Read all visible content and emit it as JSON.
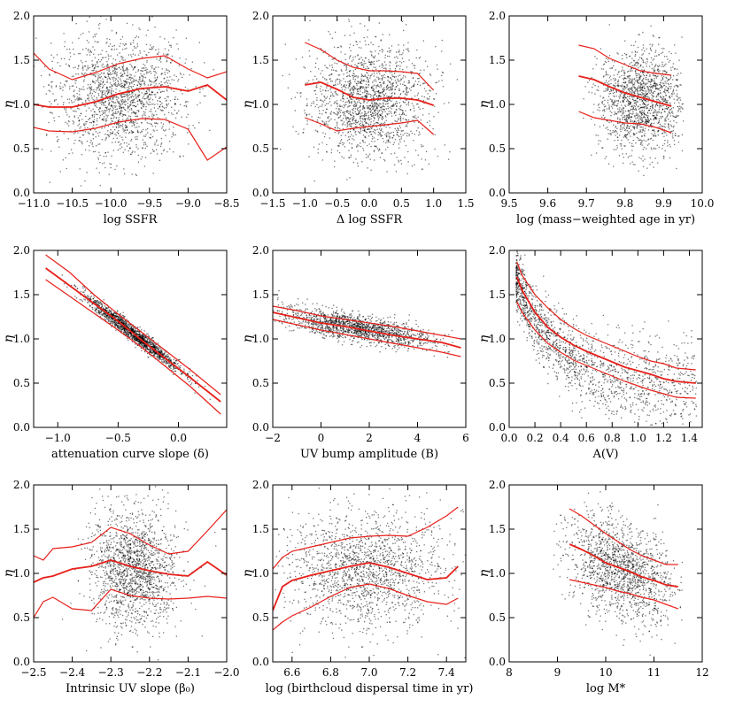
{
  "figure": {
    "shared_ylabel": "η"
  },
  "chart_data": [
    {
      "type": "scatter",
      "xlabel": "log SSFR",
      "ylabel": "η",
      "xlim": [
        -11.0,
        -8.5
      ],
      "ylim": [
        0.0,
        2.0
      ],
      "xticks": [
        -11.0,
        -10.5,
        -10.0,
        -9.5,
        -9.0,
        -8.5
      ],
      "xtick_labels": [
        "−11.0",
        "−10.5",
        "−10.0",
        "−9.5",
        "−9.0",
        "−8.5"
      ],
      "yticks": [
        0.0,
        0.5,
        1.0,
        1.5,
        2.0
      ],
      "ytick_labels": [
        "0.0",
        "0.5",
        "1.0",
        "1.5",
        "2.0"
      ],
      "cloud": {
        "cx": -9.9,
        "sx": 0.42,
        "cy": 1.08,
        "sy": 0.33,
        "n": 1700
      },
      "lines": [
        {
          "x": [
            -11.0,
            -10.8,
            -10.5,
            -10.2,
            -9.9,
            -9.6,
            -9.3,
            -9.0,
            -8.75,
            -8.5
          ],
          "y": [
            1.58,
            1.4,
            1.28,
            1.36,
            1.46,
            1.52,
            1.55,
            1.4,
            1.3,
            1.37
          ]
        },
        {
          "x": [
            -11.0,
            -10.8,
            -10.5,
            -10.2,
            -9.9,
            -9.6,
            -9.3,
            -9.0,
            -8.75,
            -8.5
          ],
          "y": [
            1.0,
            0.97,
            0.97,
            1.03,
            1.12,
            1.18,
            1.2,
            1.15,
            1.22,
            1.05
          ]
        },
        {
          "x": [
            -11.0,
            -10.8,
            -10.5,
            -10.2,
            -9.9,
            -9.6,
            -9.3,
            -9.0,
            -8.75,
            -8.5
          ],
          "y": [
            0.74,
            0.7,
            0.69,
            0.73,
            0.8,
            0.84,
            0.83,
            0.72,
            0.37,
            0.52
          ]
        }
      ]
    },
    {
      "type": "scatter",
      "xlabel": "Δ log SSFR",
      "ylabel": "η",
      "xlim": [
        -1.5,
        1.5
      ],
      "ylim": [
        0.0,
        2.0
      ],
      "xticks": [
        -1.5,
        -1.0,
        -0.5,
        0.0,
        0.5,
        1.0,
        1.5
      ],
      "xtick_labels": [
        "−1.5",
        "−1.0",
        "−0.5",
        "0.0",
        "0.5",
        "1.0",
        "1.5"
      ],
      "yticks": [
        0.0,
        0.5,
        1.0,
        1.5,
        2.0
      ],
      "ytick_labels": [
        "0.0",
        "0.5",
        "1.0",
        "1.5",
        "2.0"
      ],
      "cloud": {
        "cx": 0.0,
        "sx": 0.45,
        "cy": 1.05,
        "sy": 0.32,
        "n": 1700
      },
      "lines": [
        {
          "x": [
            -1.0,
            -0.75,
            -0.5,
            -0.25,
            0.0,
            0.25,
            0.5,
            0.75,
            1.0
          ],
          "y": [
            1.7,
            1.62,
            1.5,
            1.42,
            1.38,
            1.38,
            1.37,
            1.35,
            1.16
          ]
        },
        {
          "x": [
            -1.0,
            -0.75,
            -0.5,
            -0.25,
            0.0,
            0.25,
            0.5,
            0.75,
            1.0
          ],
          "y": [
            1.22,
            1.25,
            1.17,
            1.08,
            1.05,
            1.07,
            1.07,
            1.05,
            0.99
          ]
        },
        {
          "x": [
            -1.0,
            -0.75,
            -0.5,
            -0.25,
            0.0,
            0.25,
            0.5,
            0.75,
            1.0
          ],
          "y": [
            0.85,
            0.78,
            0.7,
            0.73,
            0.75,
            0.77,
            0.79,
            0.82,
            0.66
          ]
        }
      ]
    },
    {
      "type": "scatter",
      "xlabel": "log (mass−weighted age in yr)",
      "ylabel": "η",
      "xlim": [
        9.5,
        10.0
      ],
      "ylim": [
        0.0,
        2.0
      ],
      "xticks": [
        9.5,
        9.6,
        9.7,
        9.8,
        9.9,
        10.0
      ],
      "xtick_labels": [
        "9.5",
        "9.6",
        "9.7",
        "9.8",
        "9.9",
        "10.0"
      ],
      "yticks": [
        0.0,
        0.5,
        1.0,
        1.5,
        2.0
      ],
      "ytick_labels": [
        "0.0",
        "0.5",
        "1.0",
        "1.5",
        "2.0"
      ],
      "cloud": {
        "cx": 9.84,
        "sx": 0.055,
        "cy": 1.05,
        "sy": 0.3,
        "n": 1500,
        "xmin": 9.62,
        "xmax": 9.95
      },
      "lines": [
        {
          "x": [
            9.68,
            9.72,
            9.76,
            9.8,
            9.84,
            9.88,
            9.92
          ],
          "y": [
            1.67,
            1.63,
            1.52,
            1.45,
            1.38,
            1.35,
            1.33
          ]
        },
        {
          "x": [
            9.68,
            9.72,
            9.76,
            9.8,
            9.84,
            9.88,
            9.92
          ],
          "y": [
            1.32,
            1.28,
            1.2,
            1.13,
            1.08,
            1.03,
            0.98
          ]
        },
        {
          "x": [
            9.68,
            9.72,
            9.76,
            9.8,
            9.84,
            9.88,
            9.92
          ],
          "y": [
            0.92,
            0.85,
            0.82,
            0.79,
            0.78,
            0.74,
            0.68
          ]
        }
      ]
    },
    {
      "type": "scatter",
      "xlabel": "attenuation curve slope (δ)",
      "ylabel": "η",
      "xlim": [
        -1.2,
        0.4
      ],
      "ylim": [
        0.0,
        2.0
      ],
      "xticks": [
        -1.0,
        -0.5,
        0.0
      ],
      "xtick_labels": [
        "−1.0",
        "−0.5",
        "0.0"
      ],
      "yticks": [
        0.0,
        0.5,
        1.0,
        1.5,
        2.0
      ],
      "ytick_labels": [
        "0.0",
        "0.5",
        "1.0",
        "1.5",
        "2.0"
      ],
      "cloud": {
        "mode": "linear",
        "cx": -0.38,
        "sx": 0.2,
        "slope": -1.05,
        "icept": 0.67,
        "sy": 0.045,
        "n": 1600
      },
      "lines": [
        {
          "x": [
            -1.1,
            -0.9,
            -0.7,
            -0.5,
            -0.3,
            -0.1,
            0.1,
            0.35
          ],
          "y": [
            1.95,
            1.75,
            1.5,
            1.28,
            1.07,
            0.86,
            0.65,
            0.37
          ]
        },
        {
          "x": [
            -1.1,
            -0.9,
            -0.7,
            -0.5,
            -0.3,
            -0.1,
            0.1,
            0.35
          ],
          "y": [
            1.8,
            1.6,
            1.4,
            1.2,
            0.98,
            0.77,
            0.56,
            0.29
          ]
        },
        {
          "x": [
            -1.1,
            -0.9,
            -0.7,
            -0.5,
            -0.3,
            -0.1,
            0.1,
            0.35
          ],
          "y": [
            1.67,
            1.48,
            1.29,
            1.1,
            0.9,
            0.68,
            0.46,
            0.15
          ]
        }
      ]
    },
    {
      "type": "scatter",
      "xlabel": "UV bump amplitude (B)",
      "ylabel": "η",
      "xlim": [
        -2.0,
        6.0
      ],
      "ylim": [
        0.0,
        2.0
      ],
      "xticks": [
        -2,
        0,
        2,
        4,
        6
      ],
      "xtick_labels": [
        "−2",
        "0",
        "2",
        "4",
        "6"
      ],
      "yticks": [
        0.0,
        0.5,
        1.0,
        1.5,
        2.0
      ],
      "ytick_labels": [
        "0.0",
        "0.5",
        "1.0",
        "1.5",
        "2.0"
      ],
      "cloud": {
        "mode": "linear",
        "cx": 1.4,
        "sx": 1.6,
        "slope": -0.047,
        "icept": 1.2,
        "sy": 0.075,
        "n": 1500,
        "xmin": -2.0,
        "xmax": 5.8
      },
      "lines": [
        {
          "x": [
            -2.0,
            -1.0,
            0.0,
            1.0,
            2.0,
            3.0,
            4.0,
            5.0,
            5.8
          ],
          "y": [
            1.37,
            1.32,
            1.26,
            1.22,
            1.18,
            1.14,
            1.09,
            1.04,
            1.0
          ]
        },
        {
          "x": [
            -2.0,
            -1.0,
            0.0,
            1.0,
            2.0,
            3.0,
            4.0,
            5.0,
            5.8
          ],
          "y": [
            1.3,
            1.24,
            1.18,
            1.14,
            1.09,
            1.04,
            1.0,
            0.96,
            0.9
          ]
        },
        {
          "x": [
            -2.0,
            -1.0,
            0.0,
            1.0,
            2.0,
            3.0,
            4.0,
            5.0,
            5.8
          ],
          "y": [
            1.22,
            1.16,
            1.1,
            1.05,
            1.0,
            0.95,
            0.9,
            0.85,
            0.8
          ]
        }
      ]
    },
    {
      "type": "scatter",
      "xlabel": "A(V)",
      "ylabel": "η",
      "xlim": [
        0.0,
        1.5
      ],
      "ylim": [
        0.0,
        2.0
      ],
      "xticks": [
        0.0,
        0.2,
        0.4,
        0.6,
        0.8,
        1.0,
        1.2,
        1.4
      ],
      "xtick_labels": [
        "0.0",
        "0.2",
        "0.4",
        "0.6",
        "0.8",
        "1.0",
        "1.2",
        "1.4"
      ],
      "yticks": [
        0.0,
        0.5,
        1.0,
        1.5,
        2.0
      ],
      "ytick_labels": [
        "0.0",
        "0.5",
        "1.0",
        "1.5",
        "2.0"
      ],
      "cloud": {
        "mode": "decay",
        "xmin": 0.05,
        "xmax": 1.45,
        "sy": 0.13,
        "n": 1700
      },
      "lines": [
        {
          "x": [
            0.06,
            0.1,
            0.2,
            0.3,
            0.4,
            0.5,
            0.6,
            0.7,
            0.8,
            0.9,
            1.0,
            1.1,
            1.2,
            1.3,
            1.45
          ],
          "y": [
            1.87,
            1.72,
            1.5,
            1.35,
            1.22,
            1.12,
            1.04,
            0.98,
            0.92,
            0.86,
            0.8,
            0.75,
            0.72,
            0.67,
            0.65
          ]
        },
        {
          "x": [
            0.06,
            0.1,
            0.2,
            0.3,
            0.4,
            0.5,
            0.6,
            0.7,
            0.8,
            0.9,
            1.0,
            1.1,
            1.2,
            1.3,
            1.45
          ],
          "y": [
            1.7,
            1.55,
            1.3,
            1.13,
            1.02,
            0.93,
            0.86,
            0.8,
            0.74,
            0.68,
            0.64,
            0.6,
            0.55,
            0.52,
            0.5
          ]
        },
        {
          "x": [
            0.06,
            0.1,
            0.2,
            0.3,
            0.4,
            0.5,
            0.6,
            0.7,
            0.8,
            0.9,
            1.0,
            1.1,
            1.2,
            1.3,
            1.45
          ],
          "y": [
            1.42,
            1.3,
            1.1,
            0.95,
            0.85,
            0.76,
            0.7,
            0.64,
            0.58,
            0.52,
            0.47,
            0.42,
            0.38,
            0.34,
            0.33
          ]
        }
      ]
    },
    {
      "type": "scatter",
      "xlabel": "Intrinsic UV slope (β₀)",
      "ylabel": "η",
      "xlim": [
        -2.5,
        -2.0
      ],
      "ylim": [
        0.0,
        2.0
      ],
      "xticks": [
        -2.5,
        -2.4,
        -2.3,
        -2.2,
        -2.1,
        -2.0
      ],
      "xtick_labels": [
        "−2.5",
        "−2.4",
        "−2.3",
        "−2.2",
        "−2.1",
        "−2.0"
      ],
      "yticks": [
        0.0,
        0.5,
        1.0,
        1.5,
        2.0
      ],
      "ytick_labels": [
        "0.0",
        "0.5",
        "1.0",
        "1.5",
        "2.0"
      ],
      "cloud": {
        "cx": -2.24,
        "sx": 0.055,
        "cy": 1.05,
        "sy": 0.33,
        "n": 1600
      },
      "lines": [
        {
          "x": [
            -2.5,
            -2.475,
            -2.45,
            -2.4,
            -2.35,
            -2.3,
            -2.25,
            -2.2,
            -2.15,
            -2.1,
            -2.05,
            -2.0
          ],
          "y": [
            1.2,
            1.15,
            1.28,
            1.3,
            1.35,
            1.52,
            1.45,
            1.32,
            1.22,
            1.25,
            1.48,
            1.72
          ]
        },
        {
          "x": [
            -2.5,
            -2.475,
            -2.45,
            -2.4,
            -2.35,
            -2.3,
            -2.25,
            -2.2,
            -2.15,
            -2.1,
            -2.05,
            -2.0
          ],
          "y": [
            0.9,
            0.95,
            0.97,
            1.05,
            1.08,
            1.15,
            1.08,
            1.03,
            0.99,
            0.97,
            1.13,
            0.98
          ]
        },
        {
          "x": [
            -2.5,
            -2.475,
            -2.45,
            -2.4,
            -2.35,
            -2.3,
            -2.25,
            -2.2,
            -2.15,
            -2.1,
            -2.05,
            -2.0
          ],
          "y": [
            0.5,
            0.68,
            0.73,
            0.6,
            0.58,
            0.82,
            0.75,
            0.72,
            0.71,
            0.72,
            0.74,
            0.72
          ]
        }
      ]
    },
    {
      "type": "scatter",
      "xlabel": "log (birthcloud dispersal time in yr)",
      "ylabel": "η",
      "xlim": [
        6.5,
        7.5
      ],
      "ylim": [
        0.0,
        2.0
      ],
      "xticks": [
        6.6,
        6.8,
        7.0,
        7.2,
        7.4
      ],
      "xtick_labels": [
        "6.6",
        "6.8",
        "7.0",
        "7.2",
        "7.4"
      ],
      "yticks": [
        0.0,
        0.5,
        1.0,
        1.5,
        2.0
      ],
      "ytick_labels": [
        "0.0",
        "0.5",
        "1.0",
        "1.5",
        "2.0"
      ],
      "cloud": {
        "cx": 6.98,
        "sx": 0.2,
        "cy": 1.05,
        "sy": 0.33,
        "n": 1600
      },
      "lines": [
        {
          "x": [
            6.5,
            6.55,
            6.6,
            6.7,
            6.8,
            6.9,
            7.0,
            7.1,
            7.2,
            7.3,
            7.4,
            7.46
          ],
          "y": [
            1.05,
            1.18,
            1.25,
            1.3,
            1.35,
            1.4,
            1.42,
            1.43,
            1.42,
            1.52,
            1.65,
            1.75
          ]
        },
        {
          "x": [
            6.5,
            6.55,
            6.6,
            6.7,
            6.8,
            6.9,
            7.0,
            7.1,
            7.2,
            7.3,
            7.4,
            7.46
          ],
          "y": [
            0.58,
            0.85,
            0.92,
            0.98,
            1.03,
            1.08,
            1.12,
            1.07,
            1.0,
            0.93,
            0.95,
            1.08
          ]
        },
        {
          "x": [
            6.5,
            6.55,
            6.6,
            6.7,
            6.8,
            6.9,
            7.0,
            7.1,
            7.2,
            7.3,
            7.4,
            7.46
          ],
          "y": [
            0.36,
            0.45,
            0.52,
            0.62,
            0.74,
            0.84,
            0.88,
            0.83,
            0.75,
            0.68,
            0.65,
            0.72
          ]
        }
      ]
    },
    {
      "type": "scatter",
      "xlabel": "log M*",
      "ylabel": "η",
      "xlim": [
        8.0,
        12.0
      ],
      "ylim": [
        0.0,
        2.0
      ],
      "xticks": [
        8,
        9,
        10,
        11,
        12
      ],
      "xtick_labels": [
        "8",
        "9",
        "10",
        "11",
        "12"
      ],
      "yticks": [
        0.0,
        0.5,
        1.0,
        1.5,
        2.0
      ],
      "ytick_labels": [
        "0.0",
        "0.5",
        "1.0",
        "1.5",
        "2.0"
      ],
      "cloud": {
        "mode": "linear",
        "cx": 10.3,
        "sx": 0.55,
        "slope": -0.19,
        "icept": 2.99,
        "sy": 0.27,
        "n": 1500,
        "xmin": 8.9,
        "xmax": 11.6
      },
      "lines": [
        {
          "x": [
            9.25,
            9.5,
            9.75,
            10.0,
            10.25,
            10.5,
            10.75,
            11.0,
            11.25,
            11.5
          ],
          "y": [
            1.73,
            1.65,
            1.55,
            1.45,
            1.36,
            1.27,
            1.2,
            1.15,
            1.1,
            1.1
          ]
        },
        {
          "x": [
            9.25,
            9.5,
            9.75,
            10.0,
            10.25,
            10.5,
            10.75,
            11.0,
            11.25,
            11.5
          ],
          "y": [
            1.33,
            1.27,
            1.2,
            1.12,
            1.07,
            1.02,
            0.96,
            0.92,
            0.87,
            0.85
          ]
        },
        {
          "x": [
            9.25,
            9.5,
            9.75,
            10.0,
            10.25,
            10.5,
            10.75,
            11.0,
            11.25,
            11.5
          ],
          "y": [
            0.93,
            0.9,
            0.87,
            0.84,
            0.8,
            0.77,
            0.73,
            0.7,
            0.65,
            0.6
          ]
        }
      ]
    }
  ],
  "colors": {
    "lines": "#e8201a",
    "points": "#000000",
    "axes": "#000000"
  }
}
